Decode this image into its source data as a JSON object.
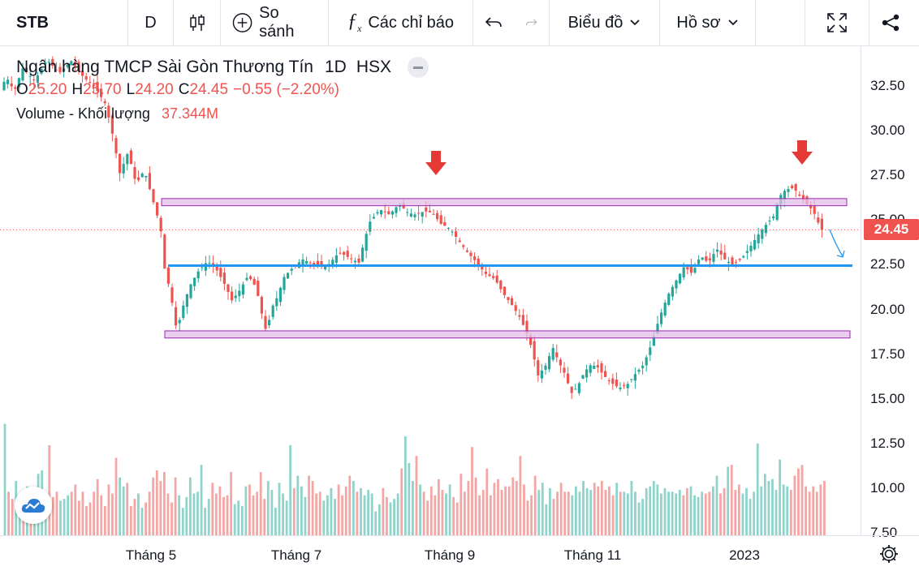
{
  "toolbar": {
    "symbol": "STB",
    "interval": "D",
    "compare": "So sánh",
    "indicators": "Các chỉ báo",
    "chart_menu": "Biểu đồ",
    "profile_menu": "Hồ sơ",
    "icons": [
      "candles-icon",
      "plus-circle-icon",
      "fx-icon",
      "undo-icon",
      "redo-icon",
      "chevron-down-icon",
      "fullscreen-icon",
      "share-icon"
    ]
  },
  "legend": {
    "title": "Ngân hàng TMCP Sài Gòn Thương Tín",
    "interval": "1D",
    "exchange": "HSX",
    "o_label": "O",
    "o_value": "25.20",
    "h_label": "H",
    "h_value": "25.70",
    "l_label": "L",
    "l_value": "24.20",
    "c_label": "C",
    "c_value": "24.45",
    "change": "−0.55 (−2.20%)",
    "volume_label": "Volume - Khối lượng",
    "volume_value": "37.344M"
  },
  "colors": {
    "up": "#26a69a",
    "down": "#ef5350",
    "zone_fill": "#e1bee7",
    "zone_border": "#9c27b0",
    "support": "#2196f3",
    "arrow": "#e53935"
  },
  "chart_data": {
    "type": "candlestick",
    "symbol": "STB",
    "ylim": [
      7.5,
      33.5
    ],
    "y_ticks": [
      "7.50",
      "10.00",
      "12.50",
      "15.00",
      "17.50",
      "20.00",
      "22.50",
      "25.00",
      "27.50",
      "30.00",
      "32.50"
    ],
    "x_ticks": [
      "Tháng 5",
      "Tháng 7",
      "Tháng 9",
      "Tháng 11",
      "2023"
    ],
    "last_price": "24.45",
    "path": [
      [
        0,
        32.0
      ],
      [
        10,
        33.0
      ],
      [
        20,
        32.2
      ],
      [
        30,
        33.5
      ],
      [
        45,
        32.8
      ],
      [
        60,
        34.0
      ],
      [
        75,
        33.2
      ],
      [
        90,
        33.9
      ],
      [
        105,
        33.0
      ],
      [
        120,
        32.4
      ],
      [
        132,
        31.5
      ],
      [
        140,
        30.0
      ],
      [
        150,
        27.6
      ],
      [
        160,
        28.8
      ],
      [
        170,
        27.0
      ],
      [
        180,
        27.8
      ],
      [
        190,
        26.2
      ],
      [
        200,
        24.6
      ],
      [
        205,
        22.3
      ],
      [
        212,
        21.0
      ],
      [
        220,
        18.8
      ],
      [
        228,
        20.2
      ],
      [
        236,
        21.3
      ],
      [
        246,
        22.1
      ],
      [
        258,
        22.7
      ],
      [
        268,
        22.3
      ],
      [
        278,
        21.5
      ],
      [
        288,
        20.5
      ],
      [
        298,
        21.1
      ],
      [
        308,
        21.9
      ],
      [
        318,
        21.2
      ],
      [
        325,
        19.7
      ],
      [
        331,
        18.6
      ],
      [
        336,
        20.0
      ],
      [
        344,
        20.7
      ],
      [
        352,
        21.8
      ],
      [
        362,
        22.3
      ],
      [
        375,
        22.8
      ],
      [
        390,
        22.5
      ],
      [
        405,
        22.4
      ],
      [
        420,
        23.2
      ],
      [
        432,
        22.9
      ],
      [
        445,
        22.6
      ],
      [
        450,
        23.7
      ],
      [
        458,
        24.9
      ],
      [
        470,
        25.6
      ],
      [
        482,
        25.3
      ],
      [
        494,
        25.9
      ],
      [
        505,
        25.4
      ],
      [
        515,
        25.3
      ],
      [
        525,
        25.5
      ],
      [
        535,
        25.4
      ],
      [
        545,
        24.8
      ],
      [
        557,
        24.5
      ],
      [
        568,
        23.8
      ],
      [
        578,
        23.2
      ],
      [
        590,
        22.6
      ],
      [
        600,
        22.0
      ],
      [
        612,
        21.7
      ],
      [
        622,
        20.9
      ],
      [
        632,
        20.3
      ],
      [
        642,
        19.6
      ],
      [
        652,
        18.6
      ],
      [
        658,
        17.7
      ],
      [
        665,
        16.3
      ],
      [
        675,
        16.9
      ],
      [
        683,
        17.9
      ],
      [
        690,
        17.1
      ],
      [
        698,
        16.4
      ],
      [
        706,
        15.3
      ],
      [
        714,
        15.7
      ],
      [
        722,
        16.5
      ],
      [
        730,
        16.9
      ],
      [
        738,
        16.8
      ],
      [
        746,
        16.3
      ],
      [
        755,
        15.9
      ],
      [
        765,
        15.6
      ],
      [
        775,
        15.8
      ],
      [
        785,
        16.4
      ],
      [
        795,
        16.9
      ],
      [
        805,
        18.1
      ],
      [
        815,
        19.6
      ],
      [
        825,
        20.8
      ],
      [
        835,
        21.6
      ],
      [
        845,
        22.4
      ],
      [
        855,
        22.0
      ],
      [
        865,
        23.0
      ],
      [
        875,
        22.6
      ],
      [
        885,
        23.4
      ],
      [
        895,
        22.8
      ],
      [
        905,
        22.5
      ],
      [
        915,
        22.8
      ],
      [
        925,
        23.4
      ],
      [
        935,
        24.1
      ],
      [
        945,
        24.7
      ],
      [
        955,
        25.2
      ],
      [
        962,
        26.3
      ],
      [
        970,
        26.7
      ],
      [
        980,
        26.8
      ],
      [
        988,
        26.3
      ],
      [
        996,
        25.9
      ],
      [
        1004,
        25.5
      ],
      [
        1014,
        24.45
      ]
    ],
    "volume": {
      "ylim_top": 14.0,
      "values": [
        13.6,
        9.8,
        9.4,
        10.4,
        9.7,
        9.6,
        10.1,
        9.5,
        10.0,
        10.8,
        11.0,
        9.6,
        12.4,
        9.5,
        9.8,
        9.3,
        9.4,
        9.6,
        9.8,
        10.2,
        9.3,
        9.8,
        9.0,
        9.2,
        9.8,
        10.5,
        9.6,
        9.0,
        10.2,
        9.7,
        11.7,
        10.6,
        10.1,
        10.3,
        9.0,
        9.4,
        9.7,
        8.9,
        9.2,
        9.8,
        10.6,
        11.0,
        10.4,
        10.9,
        9.7,
        9.2,
        10.6,
        9.6,
        8.9,
        9.5,
        10.6,
        9.7,
        9.8,
        11.3,
        8.9,
        9.4,
        10.3,
        9.7,
        10.1,
        9.5,
        9.6,
        10.9,
        9.1,
        9.3,
        9.0,
        10.1,
        10.2,
        9.6,
        9.8,
        10.9,
        9.4,
        10.4,
        9.9,
        8.9,
        10.3,
        9.7,
        9.3,
        12.4,
        10.0,
        10.7,
        10.1,
        9.5,
        10.7,
        10.4,
        9.7,
        9.8,
        9.3,
        9.6,
        10.0,
        9.4,
        10.2,
        9.6,
        10.1,
        10.7,
        10.4,
        9.8,
        10.0,
        9.6,
        9.9,
        9.7,
        8.7,
        9.1,
        10.0,
        9.5,
        9.2,
        9.4,
        9.7,
        11.1,
        12.9,
        11.4,
        10.4,
        11.8,
        10.2,
        9.8,
        9.3,
        10.1,
        9.6,
        10.5,
        9.9,
        9.7,
        10.2,
        9.5,
        9.2,
        10.8,
        9.8,
        10.4,
        12.3,
        10.6,
        9.6,
        9.9,
        11.1,
        9.6,
        10.3,
        10.5,
        9.9,
        10.1,
        10.1,
        10.6,
        10.4,
        11.8,
        10.2,
        9.3,
        9.6,
        10.7,
        9.9,
        10.3,
        9.1,
        10.0,
        9.4,
        9.8,
        10.3,
        9.8,
        9.8,
        9.6,
        10.1,
        9.8,
        10.4,
        10.0,
        9.9,
        10.3,
        10.1,
        10.4,
        9.9,
        10.1,
        9.6,
        10.3,
        9.8,
        9.8,
        9.7,
        10.4,
        9.8,
        9.2,
        9.4,
        10.0,
        10.1,
        10.4,
        10.2,
        9.7,
        10.0,
        9.8,
        9.8,
        9.7,
        9.9,
        9.6,
        10.0,
        10.1,
        9.6,
        9.5,
        9.8,
        9.7,
        9.8,
        10.1,
        10.7,
        9.7,
        10.0,
        11.2,
        11.3,
        9.9,
        10.2,
        9.7,
        10.0,
        9.4,
        9.8,
        12.5,
        10.1,
        10.8,
        10.4,
        10.5,
        9.9,
        11.6,
        10.2,
        10.1,
        9.9,
        10.7,
        11.1,
        11.3,
        10.1,
        9.8,
        10.1,
        9.8,
        10.2,
        10.4
      ]
    },
    "annotations": {
      "resistance_zone": [
        25.8,
        26.2
      ],
      "support_zone": [
        18.4,
        18.8
      ],
      "support_line": 22.45,
      "down_arrows": [
        "top at 26.2 (Tháng 8)",
        "top at 27.4 (Tháng 2)"
      ],
      "projection_arrow": "toward 22.5"
    }
  }
}
